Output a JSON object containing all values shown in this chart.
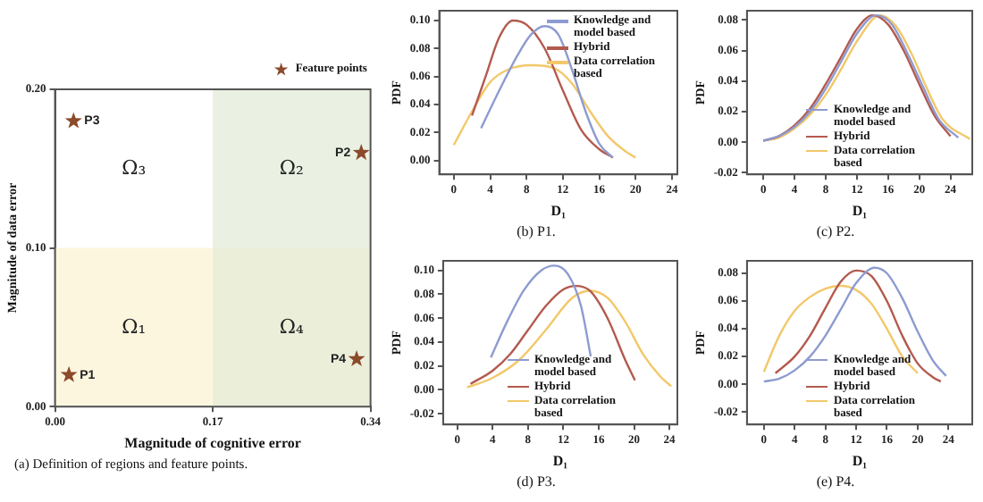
{
  "chart_data": [
    {
      "type": "scatter",
      "xlabel": "Magnitude of cognitive error",
      "ylabel": "Magnitude of data error",
      "xlim": [
        0,
        0.34
      ],
      "ylim": [
        0,
        0.2
      ],
      "xticks": [
        {
          "value": 0,
          "label": "0.00"
        },
        {
          "value": 0.17,
          "label": "0.17"
        },
        {
          "value": 0.34,
          "label": "0.34"
        }
      ],
      "yticks": [
        {
          "value": 0,
          "label": "0.00"
        },
        {
          "value": 0.1,
          "label": "0.10"
        },
        {
          "value": 0.2,
          "label": "0.20"
        }
      ],
      "series": [
        {
          "name": "Feature points",
          "color": "#8b4a2b",
          "x": [
            0.015,
            0.33,
            0.02,
            0.325
          ],
          "values": [
            0.02,
            0.16,
            0.18,
            0.03
          ],
          "value_labels": [
            "P1",
            "P2",
            "P3",
            "P4"
          ]
        }
      ],
      "bands": [
        {
          "axis": "y",
          "from": 0,
          "to": 0.1,
          "color": "#fcf3d4"
        },
        {
          "axis": "x",
          "from": 0.17,
          "to": 0.34,
          "color": "#e4ecd8"
        }
      ],
      "marker": "star",
      "legend": "top right",
      "annotations": [
        "Ω₃",
        "Ω₂",
        "Ω₁",
        "Ω₄",
        "(a) Definition of regions and feature points."
      ]
    },
    {
      "type": "line",
      "xlabel": "D₁",
      "ylabel": "PDF",
      "xlim": [
        -1.6,
        24.6
      ],
      "ylim": [
        -0.01,
        0.107
      ],
      "xticks": [
        0,
        4,
        8,
        12,
        16,
        20,
        24
      ],
      "yticks": [
        {
          "value": 0,
          "label": "0.00"
        },
        {
          "value": 0.02,
          "label": "0.02"
        },
        {
          "value": 0.04,
          "label": "0.04"
        },
        {
          "value": 0.06,
          "label": "0.06"
        },
        {
          "value": 0.08,
          "label": "0.08"
        },
        {
          "value": 0.1,
          "label": "0.10"
        }
      ],
      "legend": "top right",
      "series": [
        {
          "name": "Knowledge and model based",
          "color": "#8d9bd0",
          "x": [
            3,
            5,
            7,
            8.5,
            10,
            11.5,
            13,
            14.5,
            16,
            17.5
          ],
          "values": [
            0.023,
            0.05,
            0.075,
            0.09,
            0.096,
            0.09,
            0.065,
            0.035,
            0.012,
            0.002
          ]
        },
        {
          "name": "Hybrid",
          "color": "#b35a4e",
          "x": [
            2,
            3.5,
            5,
            6.5,
            8,
            10,
            12,
            14,
            16,
            17.5
          ],
          "values": [
            0.032,
            0.06,
            0.088,
            0.1,
            0.097,
            0.08,
            0.05,
            0.022,
            0.008,
            0.002
          ]
        },
        {
          "name": "Data correlation based",
          "color": "#f2c86a",
          "x": [
            0,
            2,
            4,
            6,
            8.5,
            11,
            13,
            15,
            17,
            19,
            20
          ],
          "values": [
            0.011,
            0.035,
            0.056,
            0.065,
            0.068,
            0.066,
            0.055,
            0.035,
            0.017,
            0.006,
            0.002
          ]
        }
      ],
      "annotations": [
        "(b) P1."
      ]
    },
    {
      "type": "line",
      "xlabel": "D₁",
      "ylabel": "PDF",
      "xlim": [
        -2.1,
        26.8
      ],
      "ylim": [
        -0.021,
        0.086
      ],
      "xticks": [
        0,
        4,
        8,
        12,
        16,
        20,
        24
      ],
      "yticks": [
        {
          "value": -0.02,
          "label": "-0.02"
        },
        {
          "value": 0,
          "label": "0.00"
        },
        {
          "value": 0.02,
          "label": "0.02"
        },
        {
          "value": 0.04,
          "label": "0.04"
        },
        {
          "value": 0.06,
          "label": "0.06"
        },
        {
          "value": 0.08,
          "label": "0.08"
        }
      ],
      "legend": "bottom",
      "series": [
        {
          "name": "Knowledge and model based",
          "color": "#8d9bd0",
          "x": [
            0,
            2,
            4,
            6,
            8,
            10,
            12,
            14.5,
            16.5,
            18.5,
            20.5,
            22.5,
            25
          ],
          "values": [
            0.001,
            0.004,
            0.01,
            0.02,
            0.035,
            0.053,
            0.071,
            0.083,
            0.077,
            0.058,
            0.036,
            0.015,
            0.003
          ]
        },
        {
          "name": "Hybrid",
          "color": "#b35a4e",
          "x": [
            0,
            2,
            4,
            6,
            8,
            10,
            12,
            14,
            16,
            18,
            20,
            22,
            24
          ],
          "values": [
            0.001,
            0.004,
            0.011,
            0.022,
            0.038,
            0.056,
            0.074,
            0.083,
            0.077,
            0.06,
            0.038,
            0.017,
            0.004
          ]
        },
        {
          "name": "Data correlation based",
          "color": "#f2c86a",
          "x": [
            0,
            2,
            4,
            6,
            8,
            10,
            12,
            15,
            17,
            19,
            21,
            23,
            26.5
          ],
          "values": [
            0.001,
            0.003,
            0.009,
            0.018,
            0.031,
            0.048,
            0.066,
            0.083,
            0.076,
            0.058,
            0.035,
            0.015,
            0.002
          ]
        }
      ],
      "annotations": [
        "(c) P2."
      ]
    },
    {
      "type": "line",
      "xlabel": "D₁",
      "ylabel": "PDF",
      "xlim": [
        -1.6,
        24.9
      ],
      "ylim": [
        -0.029,
        0.108
      ],
      "xticks": [
        0,
        4,
        8,
        12,
        16,
        20,
        24
      ],
      "yticks": [
        {
          "value": -0.02,
          "label": "-0.02"
        },
        {
          "value": 0,
          "label": "0.00"
        },
        {
          "value": 0.02,
          "label": "0.02"
        },
        {
          "value": 0.04,
          "label": "0.04"
        },
        {
          "value": 0.06,
          "label": "0.06"
        },
        {
          "value": 0.08,
          "label": "0.08"
        },
        {
          "value": 0.1,
          "label": "0.10"
        }
      ],
      "legend": "bottom",
      "series": [
        {
          "name": "Knowledge and model based",
          "color": "#8d9bd0",
          "x": [
            3.8,
            5.5,
            7.5,
            9.5,
            11,
            12.5,
            14,
            15.1
          ],
          "values": [
            0.027,
            0.055,
            0.083,
            0.1,
            0.104,
            0.097,
            0.07,
            0.028
          ]
        },
        {
          "name": "Hybrid",
          "color": "#b35a4e",
          "x": [
            1.5,
            4,
            6,
            8,
            10,
            12,
            13.4,
            15,
            17,
            19,
            20.1
          ],
          "values": [
            0.005,
            0.016,
            0.03,
            0.05,
            0.07,
            0.084,
            0.087,
            0.083,
            0.06,
            0.025,
            0.008
          ]
        },
        {
          "name": "Data correlation based",
          "color": "#f2c86a",
          "x": [
            1.1,
            4,
            7,
            10,
            13,
            15,
            17,
            19,
            21,
            23,
            24.2
          ],
          "values": [
            0.002,
            0.01,
            0.025,
            0.05,
            0.077,
            0.083,
            0.077,
            0.057,
            0.03,
            0.011,
            0.003
          ]
        }
      ],
      "annotations": [
        "(d) P3."
      ]
    },
    {
      "type": "line",
      "xlabel": "D₁",
      "ylabel": "PDF",
      "xlim": [
        -2.2,
        27.1
      ],
      "ylim": [
        -0.029,
        0.089
      ],
      "xticks": [
        0,
        4,
        8,
        12,
        16,
        20,
        24
      ],
      "yticks": [
        {
          "value": -0.02,
          "label": "-0.02"
        },
        {
          "value": 0,
          "label": "0.00"
        },
        {
          "value": 0.02,
          "label": "0.02"
        },
        {
          "value": 0.04,
          "label": "0.04"
        },
        {
          "value": 0.06,
          "label": "0.06"
        },
        {
          "value": 0.08,
          "label": "0.08"
        }
      ],
      "legend": "bottom",
      "series": [
        {
          "name": "Knowledge and model based",
          "color": "#8d9bd0",
          "x": [
            0,
            2,
            4,
            6,
            8,
            10,
            12,
            14.4,
            16,
            18,
            20,
            22,
            23.7
          ],
          "values": [
            0.002,
            0.004,
            0.01,
            0.02,
            0.035,
            0.054,
            0.073,
            0.084,
            0.08,
            0.062,
            0.038,
            0.017,
            0.006
          ]
        },
        {
          "name": "Hybrid",
          "color": "#b35a4e",
          "x": [
            1.5,
            4,
            6,
            8,
            10,
            12,
            14,
            16,
            18,
            20,
            22,
            23
          ],
          "values": [
            0.008,
            0.02,
            0.035,
            0.055,
            0.074,
            0.082,
            0.078,
            0.06,
            0.035,
            0.015,
            0.005,
            0.002
          ]
        },
        {
          "name": "Data correlation based",
          "color": "#f2c86a",
          "x": [
            0,
            2,
            4,
            6,
            8,
            10,
            12,
            14,
            16,
            18,
            20
          ],
          "values": [
            0.009,
            0.035,
            0.053,
            0.063,
            0.069,
            0.071,
            0.068,
            0.058,
            0.04,
            0.02,
            0.008
          ]
        }
      ],
      "annotations": [
        "(e) P4."
      ]
    }
  ]
}
